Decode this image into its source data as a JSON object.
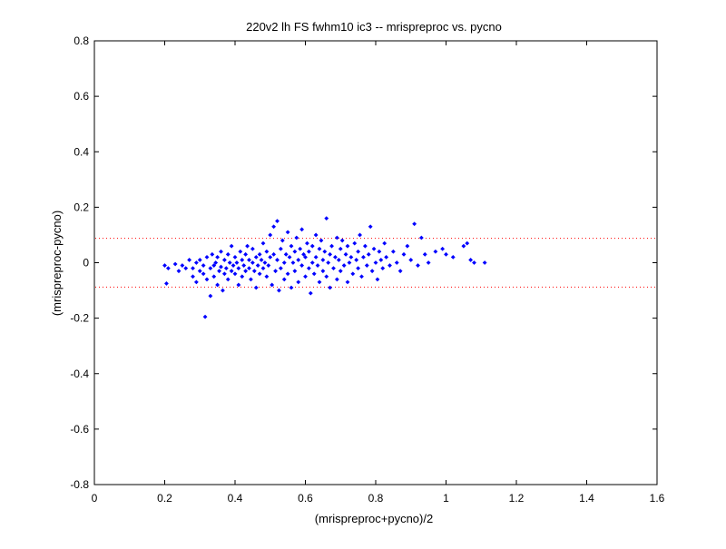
{
  "chart_data": {
    "type": "scatter",
    "title": "220v2 lh FS fwhm10 ic3 -- mrispreproc vs. pycno",
    "xlabel": "(mrispreproc+pycno)/2",
    "ylabel": "(mrispreproc-pycno)",
    "xlim": [
      0,
      1.6
    ],
    "ylim": [
      -0.8,
      0.8
    ],
    "x_ticks": [
      "0",
      "0.2",
      "0.4",
      "0.6",
      "0.8",
      "1",
      "1.2",
      "1.4",
      "1.6"
    ],
    "y_ticks": [
      "0.8",
      "0.6",
      "0.4",
      "0.2",
      "0",
      "-0.2",
      "-0.4",
      "-0.6",
      "-0.8"
    ],
    "grid": false,
    "marker_color": "#0000ff",
    "reference_lines": {
      "y_values": [
        0.088,
        -0.088
      ],
      "color": "#ff0000",
      "style": "dotted"
    },
    "series": [
      {
        "points": [
          [
            0.2,
            -0.01
          ],
          [
            0.205,
            -0.075
          ],
          [
            0.21,
            -0.02
          ],
          [
            0.23,
            -0.005
          ],
          [
            0.24,
            -0.03
          ],
          [
            0.25,
            -0.01
          ],
          [
            0.26,
            -0.02
          ],
          [
            0.27,
            0.01
          ],
          [
            0.28,
            -0.05
          ],
          [
            0.28,
            -0.02
          ],
          [
            0.29,
            0.0
          ],
          [
            0.29,
            -0.07
          ],
          [
            0.3,
            -0.03
          ],
          [
            0.3,
            0.01
          ],
          [
            0.31,
            -0.04
          ],
          [
            0.31,
            -0.01
          ],
          [
            0.315,
            -0.195
          ],
          [
            0.32,
            0.02
          ],
          [
            0.32,
            -0.06
          ],
          [
            0.33,
            -0.02
          ],
          [
            0.33,
            -0.12
          ],
          [
            0.335,
            0.03
          ],
          [
            0.34,
            -0.01
          ],
          [
            0.34,
            -0.05
          ],
          [
            0.345,
            0.0
          ],
          [
            0.35,
            -0.08
          ],
          [
            0.35,
            0.02
          ],
          [
            0.355,
            -0.03
          ],
          [
            0.36,
            -0.015
          ],
          [
            0.36,
            0.04
          ],
          [
            0.365,
            -0.1
          ],
          [
            0.37,
            -0.04
          ],
          [
            0.37,
            0.01
          ],
          [
            0.375,
            -0.02
          ],
          [
            0.38,
            -0.06
          ],
          [
            0.38,
            0.03
          ],
          [
            0.385,
            0.0
          ],
          [
            0.39,
            -0.03
          ],
          [
            0.39,
            0.06
          ],
          [
            0.395,
            -0.01
          ],
          [
            0.4,
            -0.04
          ],
          [
            0.4,
            0.02
          ],
          [
            0.405,
            0.0
          ],
          [
            0.41,
            -0.08
          ],
          [
            0.41,
            -0.02
          ],
          [
            0.415,
            0.04
          ],
          [
            0.42,
            0.01
          ],
          [
            0.42,
            -0.05
          ],
          [
            0.425,
            -0.01
          ],
          [
            0.43,
            0.03
          ],
          [
            0.43,
            -0.03
          ],
          [
            0.435,
            0.06
          ],
          [
            0.44,
            -0.02
          ],
          [
            0.44,
            0.01
          ],
          [
            0.445,
            -0.06
          ],
          [
            0.45,
            0.0
          ],
          [
            0.45,
            0.05
          ],
          [
            0.455,
            -0.03
          ],
          [
            0.46,
            0.02
          ],
          [
            0.46,
            -0.09
          ],
          [
            0.465,
            -0.01
          ],
          [
            0.47,
            0.03
          ],
          [
            0.47,
            -0.04
          ],
          [
            0.475,
            0.01
          ],
          [
            0.48,
            -0.02
          ],
          [
            0.48,
            0.07
          ],
          [
            0.485,
            0.0
          ],
          [
            0.49,
            -0.05
          ],
          [
            0.49,
            0.04
          ],
          [
            0.495,
            -0.01
          ],
          [
            0.5,
            0.1
          ],
          [
            0.5,
            0.02
          ],
          [
            0.505,
            -0.08
          ],
          [
            0.51,
            0.13
          ],
          [
            0.51,
            0.03
          ],
          [
            0.515,
            -0.03
          ],
          [
            0.52,
            0.01
          ],
          [
            0.52,
            0.15
          ],
          [
            0.525,
            -0.1
          ],
          [
            0.53,
            0.05
          ],
          [
            0.53,
            -0.02
          ],
          [
            0.535,
            0.08
          ],
          [
            0.54,
            0.0
          ],
          [
            0.54,
            -0.06
          ],
          [
            0.545,
            0.03
          ],
          [
            0.55,
            0.11
          ],
          [
            0.55,
            -0.04
          ],
          [
            0.555,
            0.02
          ],
          [
            0.56,
            0.06
          ],
          [
            0.56,
            -0.09
          ],
          [
            0.565,
            0.0
          ],
          [
            0.57,
            0.04
          ],
          [
            0.57,
            -0.03
          ],
          [
            0.575,
            0.09
          ],
          [
            0.58,
            0.01
          ],
          [
            0.58,
            -0.07
          ],
          [
            0.585,
            0.05
          ],
          [
            0.59,
            -0.01
          ],
          [
            0.59,
            0.12
          ],
          [
            0.595,
            0.03
          ],
          [
            0.6,
            -0.05
          ],
          [
            0.6,
            0.02
          ],
          [
            0.605,
            0.07
          ],
          [
            0.61,
            -0.02
          ],
          [
            0.61,
            0.04
          ],
          [
            0.615,
            -0.11
          ],
          [
            0.62,
            0.0
          ],
          [
            0.62,
            0.06
          ],
          [
            0.625,
            -0.04
          ],
          [
            0.63,
            0.02
          ],
          [
            0.63,
            0.1
          ],
          [
            0.635,
            -0.01
          ],
          [
            0.64,
            0.05
          ],
          [
            0.64,
            -0.07
          ],
          [
            0.645,
            0.08
          ],
          [
            0.65,
            0.01
          ],
          [
            0.65,
            -0.03
          ],
          [
            0.655,
            0.04
          ],
          [
            0.66,
            0.16
          ],
          [
            0.66,
            -0.05
          ],
          [
            0.665,
            0.0
          ],
          [
            0.67,
            0.03
          ],
          [
            0.67,
            -0.09
          ],
          [
            0.675,
            0.06
          ],
          [
            0.68,
            -0.02
          ],
          [
            0.685,
            0.02
          ],
          [
            0.69,
            0.09
          ],
          [
            0.69,
            -0.06
          ],
          [
            0.695,
            0.01
          ],
          [
            0.7,
            0.05
          ],
          [
            0.7,
            -0.03
          ],
          [
            0.705,
            0.08
          ],
          [
            0.71,
            -0.01
          ],
          [
            0.715,
            0.03
          ],
          [
            0.72,
            -0.07
          ],
          [
            0.72,
            0.06
          ],
          [
            0.725,
            0.0
          ],
          [
            0.73,
            0.02
          ],
          [
            0.735,
            -0.04
          ],
          [
            0.74,
            0.07
          ],
          [
            0.745,
            0.01
          ],
          [
            0.75,
            -0.02
          ],
          [
            0.75,
            0.04
          ],
          [
            0.755,
            0.1
          ],
          [
            0.76,
            -0.05
          ],
          [
            0.765,
            0.02
          ],
          [
            0.77,
            0.06
          ],
          [
            0.775,
            -0.01
          ],
          [
            0.78,
            0.03
          ],
          [
            0.785,
            0.13
          ],
          [
            0.79,
            -0.03
          ],
          [
            0.795,
            0.05
          ],
          [
            0.8,
            0.0
          ],
          [
            0.805,
            -0.06
          ],
          [
            0.81,
            0.04
          ],
          [
            0.815,
            0.01
          ],
          [
            0.82,
            -0.02
          ],
          [
            0.825,
            0.07
          ],
          [
            0.83,
            0.02
          ],
          [
            0.84,
            -0.01
          ],
          [
            0.85,
            0.04
          ],
          [
            0.86,
            0.0
          ],
          [
            0.87,
            -0.03
          ],
          [
            0.88,
            0.03
          ],
          [
            0.89,
            0.06
          ],
          [
            0.9,
            0.01
          ],
          [
            0.91,
            0.14
          ],
          [
            0.92,
            -0.01
          ],
          [
            0.93,
            0.09
          ],
          [
            0.94,
            0.03
          ],
          [
            0.95,
            0.0
          ],
          [
            0.97,
            0.04
          ],
          [
            0.99,
            0.05
          ],
          [
            1.0,
            0.03
          ],
          [
            1.02,
            0.02
          ],
          [
            1.05,
            0.06
          ],
          [
            1.06,
            0.07
          ],
          [
            1.07,
            0.01
          ],
          [
            1.08,
            0.0
          ],
          [
            1.11,
            0.0
          ]
        ]
      }
    ]
  }
}
